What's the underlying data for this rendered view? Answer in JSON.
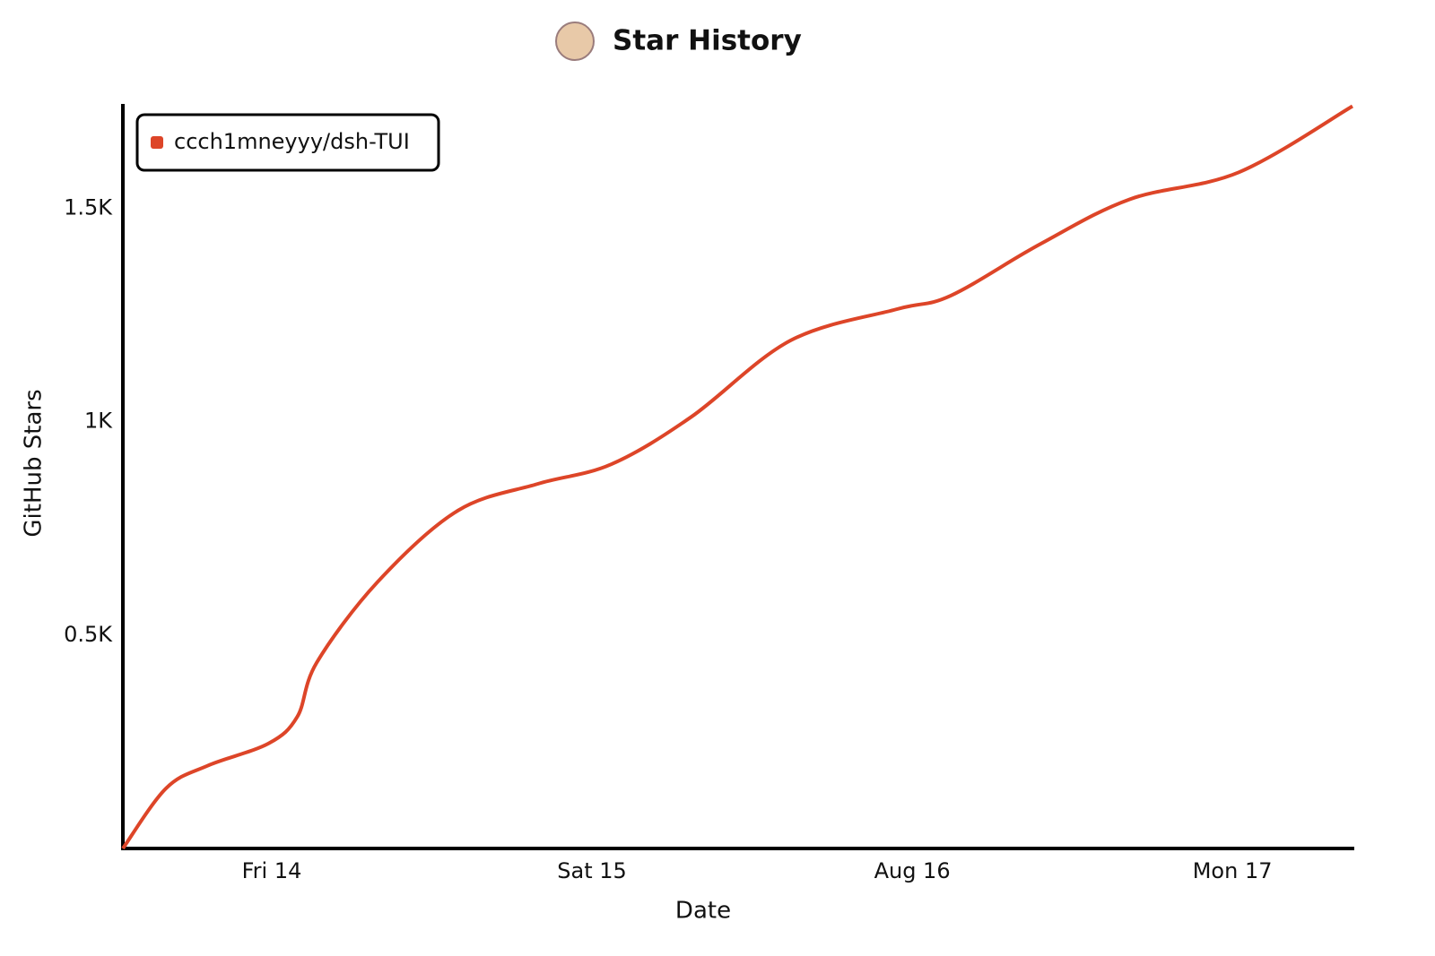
{
  "chart_data": {
    "type": "line",
    "title": "Star History",
    "x_label": "Date",
    "y_label": "GitHub Stars",
    "x": [
      13.535,
      13.67,
      13.8,
      13.99,
      14.08,
      14.14,
      14.33,
      14.58,
      14.83,
      15.06,
      15.31,
      15.62,
      15.95,
      16.12,
      16.4,
      16.68,
      17.02,
      17.375
    ],
    "series": [
      {
        "name": "ccch1mneyyy/dsh-TUI",
        "color": "#dd4528",
        "values": [
          0,
          141,
          194,
          246,
          309,
          435,
          624,
          791,
          854,
          900,
          1011,
          1190,
          1263,
          1295,
          1416,
          1521,
          1584,
          1739
        ]
      }
    ],
    "xlim": [
      13.535,
      17.375
    ],
    "xticks": [
      {
        "value": 14,
        "label": "Fri 14"
      },
      {
        "value": 15,
        "label": "Sat 15"
      },
      {
        "value": 16,
        "label": "Aug 16"
      },
      {
        "value": 17,
        "label": "Mon 17"
      }
    ],
    "ylim": [
      0,
      1740
    ],
    "yticks": [
      {
        "value": 500,
        "label": "0.5K"
      },
      {
        "value": 1000,
        "label": "1K"
      },
      {
        "value": 1500,
        "label": "1.5K"
      }
    ],
    "grid": false,
    "legend": "top-left"
  }
}
